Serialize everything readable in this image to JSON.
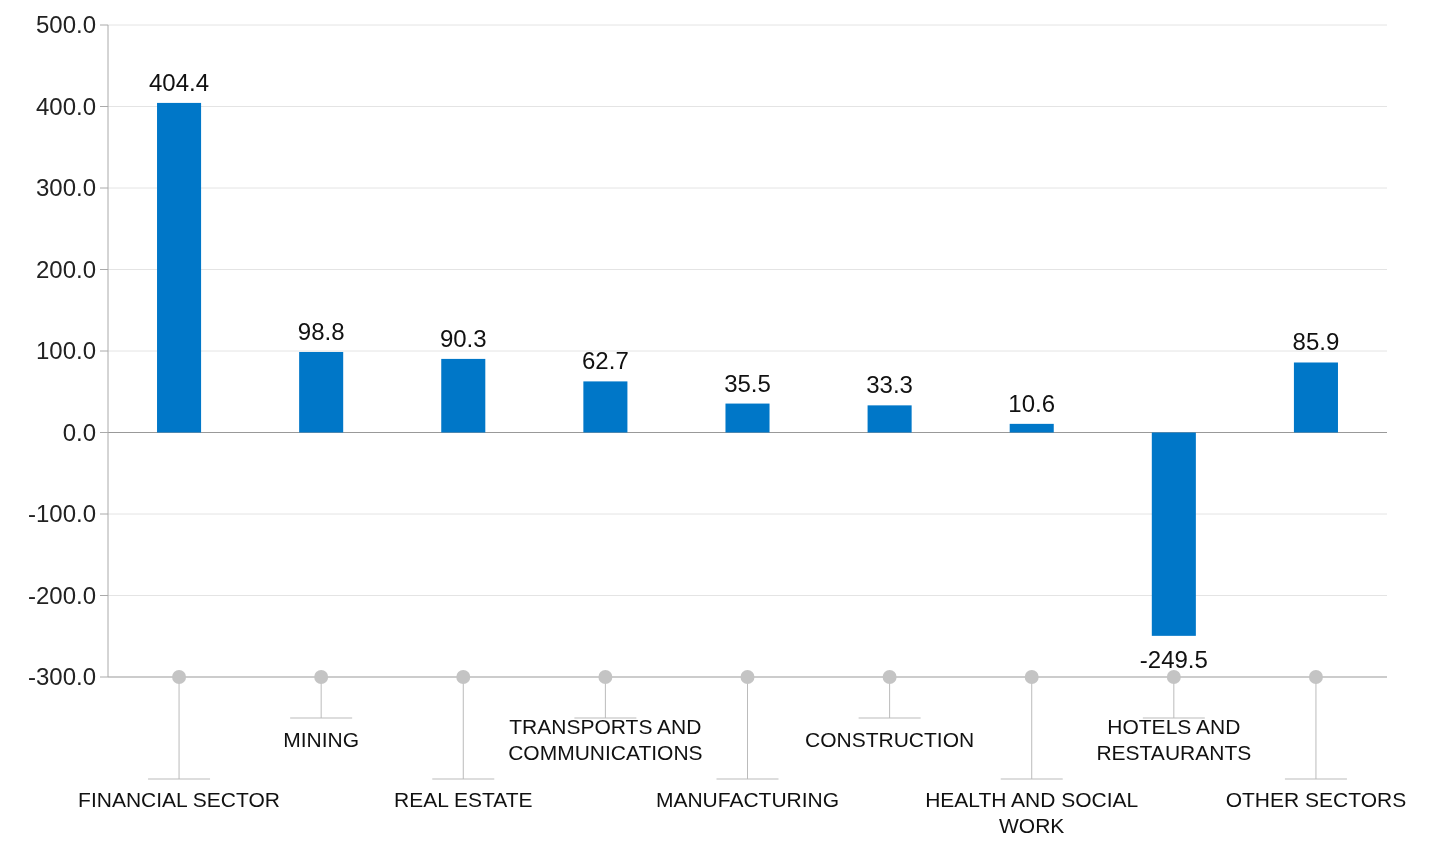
{
  "chart_data": {
    "type": "bar",
    "categories": [
      "FINANCIAL SECTOR",
      "MINING",
      "REAL ESTATE",
      "TRANSPORTS AND COMMUNICATIONS",
      "MANUFACTURING",
      "CONSTRUCTION",
      "HEALTH AND SOCIAL WORK",
      "HOTELS AND RESTAURANTS",
      "OTHER SECTORS"
    ],
    "values": [
      404.4,
      98.8,
      90.3,
      62.7,
      35.5,
      33.3,
      10.6,
      -249.5,
      85.9
    ],
    "color": "#0077c8",
    "ylim": [
      -300,
      500
    ],
    "yticks": [
      {
        "value": -300,
        "label": "-300.0"
      },
      {
        "value": -200,
        "label": "-200.0"
      },
      {
        "value": -100,
        "label": "-100.0"
      },
      {
        "value": 0,
        "label": "0.0"
      },
      {
        "value": 100,
        "label": "100.0"
      },
      {
        "value": 200,
        "label": "200.0"
      },
      {
        "value": 300,
        "label": "300.0"
      },
      {
        "value": 400,
        "label": "400.0"
      },
      {
        "value": 500,
        "label": "500.0"
      }
    ],
    "grid": "y",
    "data_labels": true
  }
}
